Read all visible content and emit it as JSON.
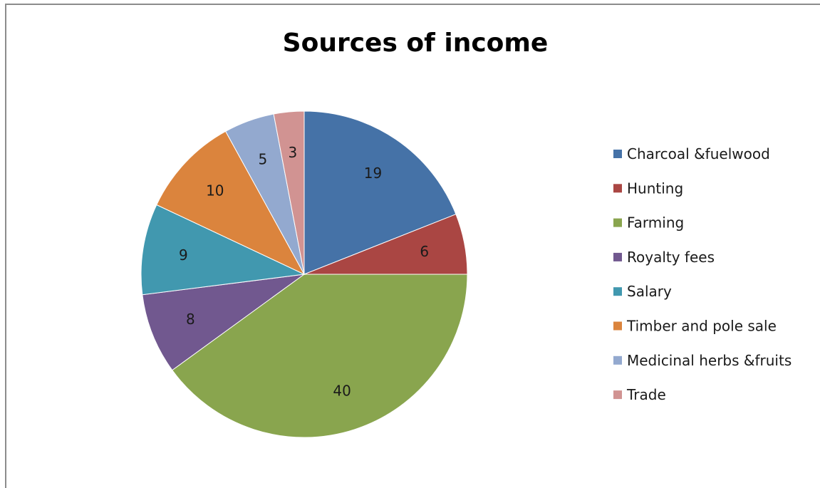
{
  "chart_data": {
    "type": "pie",
    "title": "Sources of income",
    "categories": [
      "Charcoal &fuelwood",
      "Hunting",
      "Farming",
      "Royalty fees",
      "Salary",
      "Timber and pole sale",
      "Medicinal herbs &fruits",
      "Trade"
    ],
    "values": [
      19,
      6,
      40,
      8,
      9,
      10,
      5,
      3
    ],
    "colors": [
      "#4572A7",
      "#AA4643",
      "#89A54E",
      "#71588F",
      "#4198AF",
      "#DB843D",
      "#93A9CF",
      "#D19392"
    ],
    "legend_position": "right",
    "data_labels": true
  }
}
